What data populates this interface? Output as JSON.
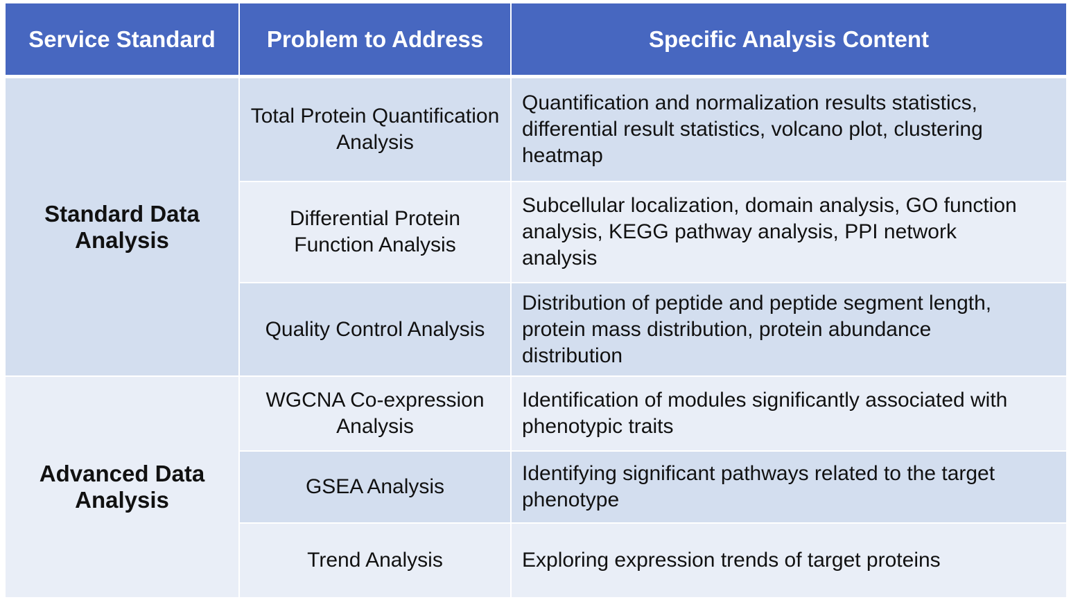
{
  "table": {
    "header": [
      "Service Standard",
      "Problem to Address",
      "Specific Analysis Content"
    ],
    "groups": [
      {
        "label": "Standard Data Analysis",
        "rows": [
          {
            "problem": "Total Protein Quantification Analysis",
            "content": "Quantification and normalization results statistics, differential result statistics, volcano plot, clustering heatmap"
          },
          {
            "problem": "Differential Protein Function Analysis",
            "content": "Subcellular localization, domain analysis, GO function analysis, KEGG pathway analysis, PPI network analysis"
          },
          {
            "problem": "Quality Control Analysis",
            "content": "Distribution of peptide and peptide segment length, protein mass distribution, protein abundance distribution"
          }
        ]
      },
      {
        "label": "Advanced Data Analysis",
        "rows": [
          {
            "problem": "WGCNA Co-expression Analysis",
            "content": "Identification of modules significantly associated with phenotypic traits"
          },
          {
            "problem": "GSEA Analysis",
            "content": "Identifying significant pathways related to the target phenotype"
          },
          {
            "problem": "Trend Analysis",
            "content": "Exploring expression trends of target proteins"
          }
        ]
      }
    ]
  }
}
